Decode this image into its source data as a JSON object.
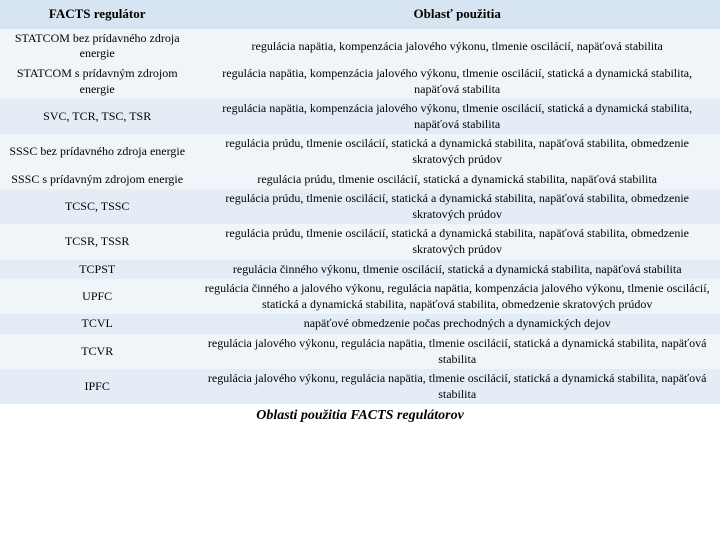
{
  "table": {
    "header": {
      "col1": "FACTS regulátor",
      "col2": "Oblasť použitia"
    },
    "rows": [
      {
        "c1": "STATCOM bez prídavného zdroja energie",
        "c2": "regulácia napätia, kompenzácia jalového výkonu, tlmenie oscilácií, napäťová stabilita",
        "cls": "row-light"
      },
      {
        "c1": "STATCOM s prídavným zdrojom energie",
        "c2": "regulácia napätia, kompenzácia jalového výkonu, tlmenie oscilácií, statická a dynamická stabilita, napäťová stabilita",
        "cls": "row-light"
      },
      {
        "c1": "SVC, TCR, TSC, TSR",
        "c2": "regulácia napätia, kompenzácia jalového výkonu, tlmenie oscilácií, statická a dynamická stabilita, napäťová stabilita",
        "cls": "row-mid"
      },
      {
        "c1": "SSSC bez prídavného zdroja energie",
        "c2": "regulácia prúdu, tlmenie oscilácií, statická a dynamická stabilita, napäťová stabilita, obmedzenie skratových prúdov",
        "cls": "row-light"
      },
      {
        "c1": "SSSC s prídavným zdrojom energie",
        "c2": "regulácia prúdu, tlmenie oscilácií, statická a dynamická stabilita, napäťová stabilita",
        "cls": "row-light"
      },
      {
        "c1": "TCSC, TSSC",
        "c2": "regulácia prúdu, tlmenie oscilácií, statická a dynamická stabilita, napäťová stabilita, obmedzenie skratových prúdov",
        "cls": "row-mid"
      },
      {
        "c1": "TCSR, TSSR",
        "c2": "regulácia prúdu, tlmenie oscilácií, statická a dynamická stabilita, napäťová stabilita, obmedzenie skratových prúdov",
        "cls": "row-light"
      },
      {
        "c1": "TCPST",
        "c2": "regulácia činného výkonu, tlmenie oscilácií, statická a dynamická stabilita, napäťová stabilita",
        "cls": "row-mid"
      },
      {
        "c1": "UPFC",
        "c2": "regulácia činného a jalového výkonu, regulácia napätia, kompenzácia jalového výkonu, tlmenie oscilácií, statická a dynamická stabilita, napäťová stabilita, obmedzenie skratových prúdov",
        "cls": "row-light"
      },
      {
        "c1": "TCVL",
        "c2": "napäťové obmedzenie počas prechodných a dynamických dejov",
        "cls": "row-mid"
      },
      {
        "c1": "TCVR",
        "c2": "regulácia jalového výkonu, regulácia napätia, tlmenie oscilácií, statická a dynamická stabilita, napäťová stabilita",
        "cls": "row-light"
      },
      {
        "c1": "IPFC",
        "c2": "regulácia jalového výkonu, regulácia napätia, tlmenie oscilácií, statická a dynamická stabilita, napäťová stabilita",
        "cls": "row-mid"
      }
    ],
    "caption": "Oblasti použitia FACTS regulátorov"
  },
  "style": {
    "colors": {
      "head_bg": "#d7e4f2",
      "light_bg": "#f0f5fa",
      "mid_bg": "#e4edf6",
      "text": "#000000"
    },
    "font_family": "Georgia, Times New Roman, serif",
    "font_size_body": 12,
    "font_size_header": 13,
    "font_size_caption": 14,
    "col_widths": {
      "left_pct": 27,
      "right_pct": 73
    }
  }
}
